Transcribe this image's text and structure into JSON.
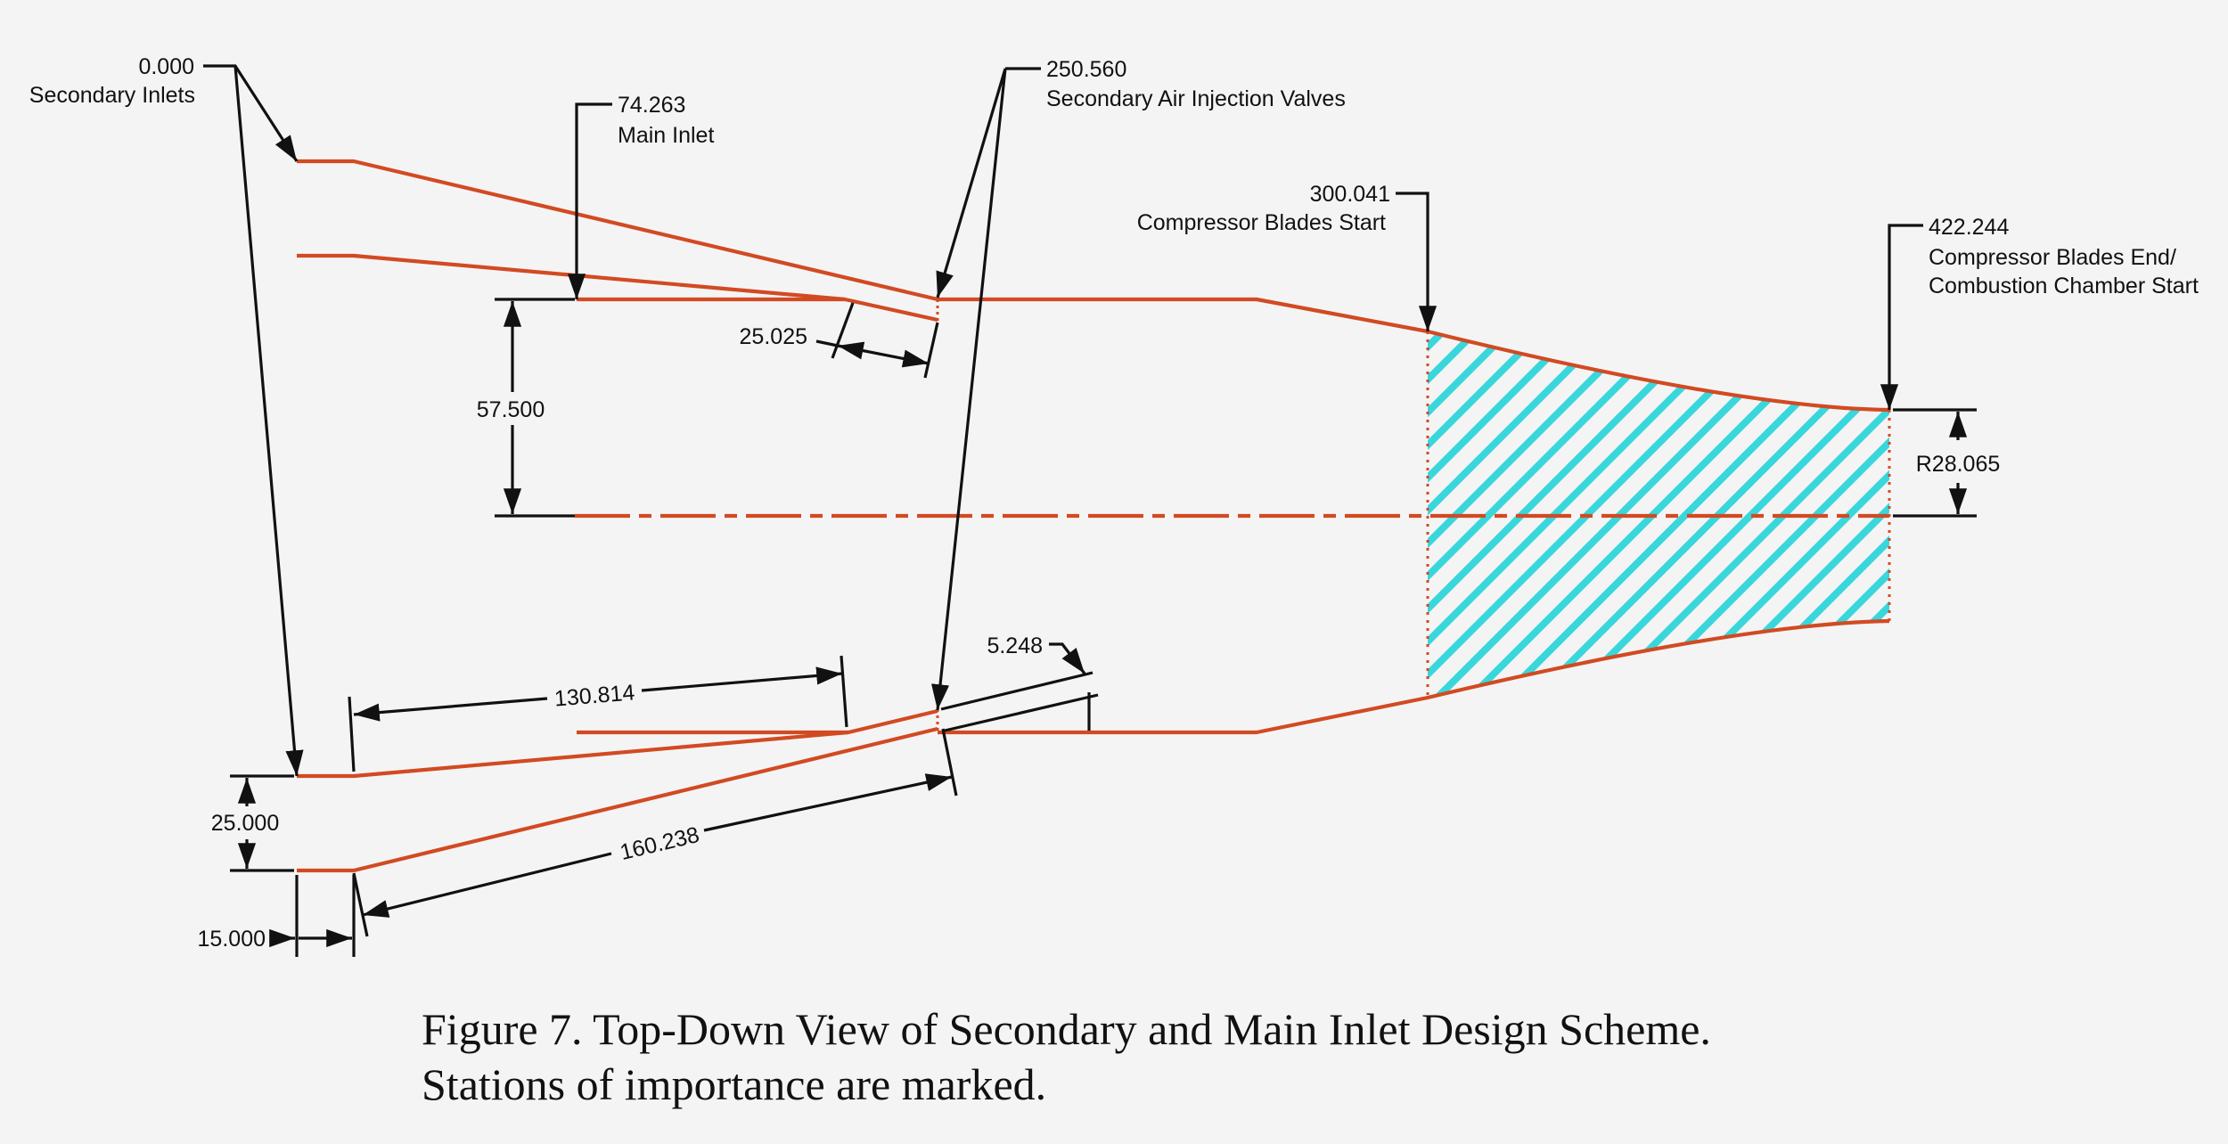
{
  "stations": {
    "secondary_inlets": {
      "value": "0.000",
      "label": "Secondary Inlets"
    },
    "main_inlet": {
      "value": "74.263",
      "label": "Main Inlet"
    },
    "injection_valves": {
      "value": "250.560",
      "label": "Secondary Air Injection Valves"
    },
    "blades_start": {
      "value": "300.041",
      "label": "Compressor Blades Start"
    },
    "blades_end": {
      "value": "422.244",
      "label_line1": "Compressor Blades End/",
      "label_line2": "Combustion Chamber Start"
    }
  },
  "dimensions": {
    "main_inlet_height": "57.500",
    "valve_gap": "25.025",
    "outlet_radius": "R28.065",
    "secondary_inlet_spacing": "25.000",
    "lower_length": "130.814",
    "duct_length": "160.238",
    "valve_offset": "5.248",
    "inlet_straight": "15.000"
  },
  "caption": {
    "line1": "Figure 7. Top-Down View of Secondary and Main Inlet Design Scheme.",
    "line2": "Stations of importance are marked."
  },
  "colors": {
    "geometry": "#d24a22",
    "dimension": "#111111",
    "hatch": "#39d7dc",
    "background": "#f4f4f4"
  }
}
